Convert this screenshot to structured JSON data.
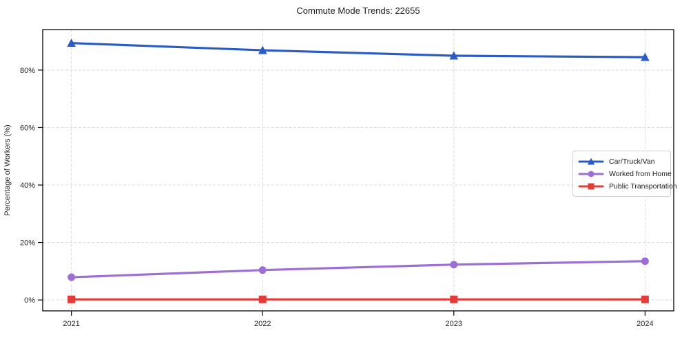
{
  "title": "Commute Mode Trends: 22655",
  "chart_data": {
    "type": "line",
    "title": "Commute Mode Trends: 22655",
    "xlabel": "",
    "ylabel": "Percentage of Workers (%)",
    "x": [
      2021,
      2022,
      2023,
      2024
    ],
    "x_tick_labels": [
      "2021",
      "2022",
      "2023",
      "2024"
    ],
    "y_ticks": [
      0,
      20,
      40,
      60,
      80
    ],
    "y_tick_labels": [
      "0%",
      "20%",
      "40%",
      "60%",
      "80%"
    ],
    "xlim": [
      2020.85,
      2024.15
    ],
    "ylim": [
      -3.8,
      94.1
    ],
    "grid": true,
    "legend_position": "center-right",
    "series": [
      {
        "name": "Car/Truck/Van",
        "marker": "triangle",
        "color": "#2a5cc4",
        "values": [
          89.4,
          86.9,
          85.0,
          84.5
        ]
      },
      {
        "name": "Worked from Home",
        "marker": "circle",
        "color": "#9d6fd4",
        "values": [
          7.9,
          10.4,
          12.3,
          13.5
        ]
      },
      {
        "name": "Public Transportation",
        "marker": "square",
        "color": "#e13c38",
        "values": [
          0.2,
          0.2,
          0.2,
          0.2
        ]
      }
    ]
  },
  "colors": {
    "grid": "#d9d9d9",
    "spine": "#000000",
    "tick_text": "#262626",
    "title_text": "#1a1a1a",
    "legend_border": "#cccccc",
    "background": "#ffffff"
  }
}
